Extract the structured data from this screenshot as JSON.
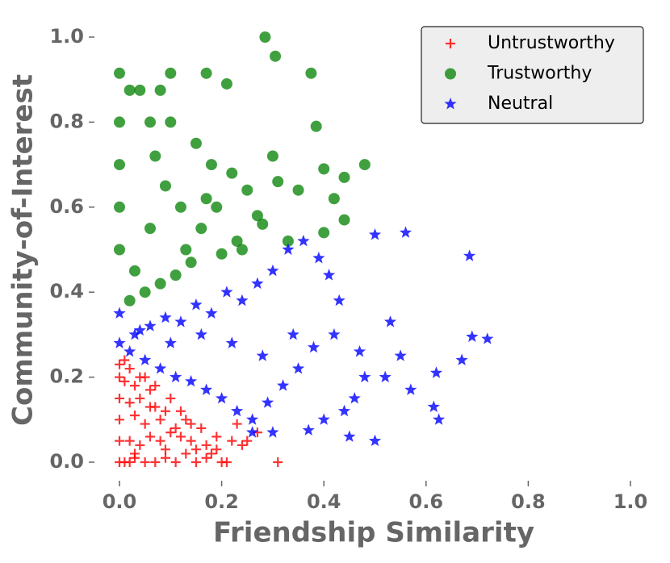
{
  "chart_data": {
    "type": "scatter",
    "xlabel": "Friendship Similarity",
    "ylabel": "Community-of-Interest",
    "xlim": [
      -0.05,
      1.05
    ],
    "ylim": [
      -0.05,
      1.05
    ],
    "xticks": [
      {
        "value": 0,
        "label": "0.0"
      },
      0.2,
      0.4,
      0.6,
      0.8,
      {
        "value": 1,
        "label": "1.0"
      }
    ],
    "yticks": [
      {
        "value": 0,
        "label": "0.0"
      },
      0.2,
      0.4,
      0.6,
      0.8,
      {
        "value": 1,
        "label": "1.0"
      }
    ],
    "legend": "upper right",
    "series": [
      {
        "name": "Untrustworthy",
        "color": "#ff0000",
        "marker": "+",
        "x": [
          0,
          0.01,
          0.02,
          0.03,
          0.05,
          0.07,
          0.09,
          0.11,
          0.13,
          0.15,
          0.17,
          0.19,
          0.21,
          0.31,
          0.2,
          0.24,
          0.18,
          0.22,
          0.25,
          0.27,
          0.0,
          0.02,
          0.04,
          0.06,
          0.08,
          0.1,
          0.12,
          0.14,
          0.16,
          0.0,
          0.03,
          0.05,
          0.08,
          0.11,
          0.13,
          0.0,
          0.02,
          0.04,
          0.07,
          0.09,
          0.01,
          0.03,
          0.06,
          0.0,
          0.02,
          0.04,
          0.01,
          0.0,
          0.15,
          0.12,
          0.1,
          0.07,
          0.05,
          0.19,
          0.23,
          0.09,
          0.03,
          0.17,
          0.06,
          0.14
        ],
        "y": [
          0,
          0,
          0,
          0.01,
          0,
          0,
          0.01,
          0,
          0.02,
          0,
          0.01,
          0.03,
          0,
          0,
          0,
          0.04,
          0.02,
          0.05,
          0.05,
          0.07,
          0.05,
          0.05,
          0.04,
          0.06,
          0.05,
          0.07,
          0.06,
          0.05,
          0.08,
          0.1,
          0.11,
          0.09,
          0.1,
          0.08,
          0.1,
          0.15,
          0.14,
          0.15,
          0.13,
          0.12,
          0.19,
          0.18,
          0.17,
          0.23,
          0.22,
          0.2,
          0.24,
          0.2,
          0.03,
          0.12,
          0.15,
          0.18,
          0.2,
          0.06,
          0.09,
          0.03,
          0.02,
          0.04,
          0.13,
          0.09
        ]
      },
      {
        "name": "Trustworthy",
        "color": "#008000",
        "marker": "o",
        "x": [
          0.0,
          0.0,
          0.0,
          0.0,
          0.0,
          0.02,
          0.04,
          0.06,
          0.08,
          0.1,
          0.285,
          0.305,
          0.375,
          0.1,
          0.17,
          0.21,
          0.385,
          0.4,
          0.48,
          0.44,
          0.42,
          0.44,
          0.4,
          0.33,
          0.35,
          0.3,
          0.25,
          0.22,
          0.18,
          0.15,
          0.12,
          0.09,
          0.06,
          0.03,
          0.13,
          0.16,
          0.19,
          0.23,
          0.27,
          0.31,
          0.05,
          0.08,
          0.11,
          0.14,
          0.2,
          0.24,
          0.28,
          0.02,
          0.07,
          0.17
        ],
        "y": [
          0.915,
          0.8,
          0.7,
          0.6,
          0.5,
          0.875,
          0.875,
          0.8,
          0.875,
          0.915,
          1.0,
          0.955,
          0.915,
          0.8,
          0.915,
          0.89,
          0.79,
          0.69,
          0.7,
          0.67,
          0.62,
          0.57,
          0.54,
          0.52,
          0.64,
          0.72,
          0.64,
          0.68,
          0.7,
          0.75,
          0.6,
          0.65,
          0.55,
          0.45,
          0.5,
          0.55,
          0.6,
          0.52,
          0.58,
          0.66,
          0.4,
          0.42,
          0.44,
          0.47,
          0.49,
          0.5,
          0.56,
          0.38,
          0.72,
          0.62
        ]
      },
      {
        "name": "Neutral",
        "color": "#0000ff",
        "marker": "*",
        "x": [
          0.685,
          0.72,
          0.69,
          0.67,
          0.62,
          0.625,
          0.615,
          0.56,
          0.5,
          0.5,
          0.45,
          0.37,
          0.3,
          0.26,
          0.55,
          0.53,
          0.48,
          0.46,
          0.43,
          0.41,
          0.39,
          0.36,
          0.33,
          0.3,
          0.27,
          0.24,
          0.21,
          0.18,
          0.15,
          0.12,
          0.09,
          0.06,
          0.03,
          0.0,
          0.0,
          0.02,
          0.05,
          0.08,
          0.11,
          0.14,
          0.17,
          0.2,
          0.23,
          0.26,
          0.29,
          0.32,
          0.35,
          0.38,
          0.42,
          0.47,
          0.52,
          0.57,
          0.44,
          0.4,
          0.34,
          0.28,
          0.22,
          0.16,
          0.1,
          0.04
        ],
        "y": [
          0.485,
          0.29,
          0.295,
          0.24,
          0.21,
          0.1,
          0.13,
          0.54,
          0.535,
          0.05,
          0.06,
          0.075,
          0.07,
          0.07,
          0.25,
          0.33,
          0.2,
          0.15,
          0.38,
          0.44,
          0.48,
          0.52,
          0.5,
          0.45,
          0.42,
          0.38,
          0.4,
          0.35,
          0.37,
          0.33,
          0.34,
          0.32,
          0.3,
          0.28,
          0.35,
          0.26,
          0.24,
          0.22,
          0.2,
          0.19,
          0.17,
          0.15,
          0.12,
          0.1,
          0.14,
          0.18,
          0.22,
          0.27,
          0.3,
          0.26,
          0.2,
          0.17,
          0.12,
          0.1,
          0.3,
          0.25,
          0.28,
          0.3,
          0.28,
          0.31
        ]
      }
    ]
  }
}
